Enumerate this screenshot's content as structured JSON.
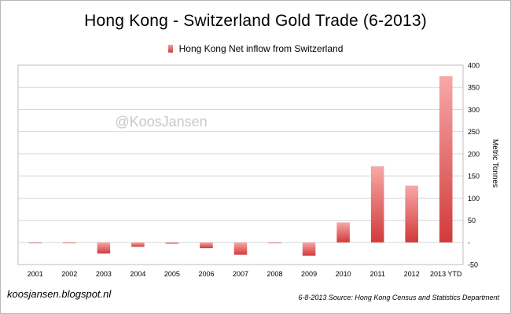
{
  "chart_data": {
    "type": "bar",
    "title": "Hong Kong - Switzerland Gold Trade (6-2013)",
    "series": [
      {
        "name": "Hong Kong Net inflow from Switzerland",
        "values": [
          0,
          0,
          -25,
          -10,
          -3,
          -13,
          -28,
          0,
          -30,
          45,
          172,
          128,
          375
        ]
      }
    ],
    "categories": [
      "2001",
      "2002",
      "2003",
      "2004",
      "2005",
      "2006",
      "2007",
      "2008",
      "2009",
      "2010",
      "2011",
      "2012",
      "2013 YTD"
    ],
    "ylabel": "Metric Tonnes",
    "ylim": [
      -50,
      400
    ],
    "yticks": [
      -50,
      0,
      50,
      100,
      150,
      200,
      250,
      300,
      350,
      400
    ],
    "ytick_labels": [
      "-50",
      "-",
      "50",
      "100",
      "150",
      "200",
      "250",
      "300",
      "350",
      "400"
    ],
    "y_axis_side": "right",
    "grid": true,
    "legend": "top",
    "bar_color_top": "#f7a8a8",
    "bar_color_bottom": "#d23a3a",
    "watermark": "@KoosJansen"
  },
  "footer": {
    "site": "koosjansen.blogspot.nl",
    "source": "6-8-2013 Source: Hong Kong Census and Statistics Department"
  }
}
